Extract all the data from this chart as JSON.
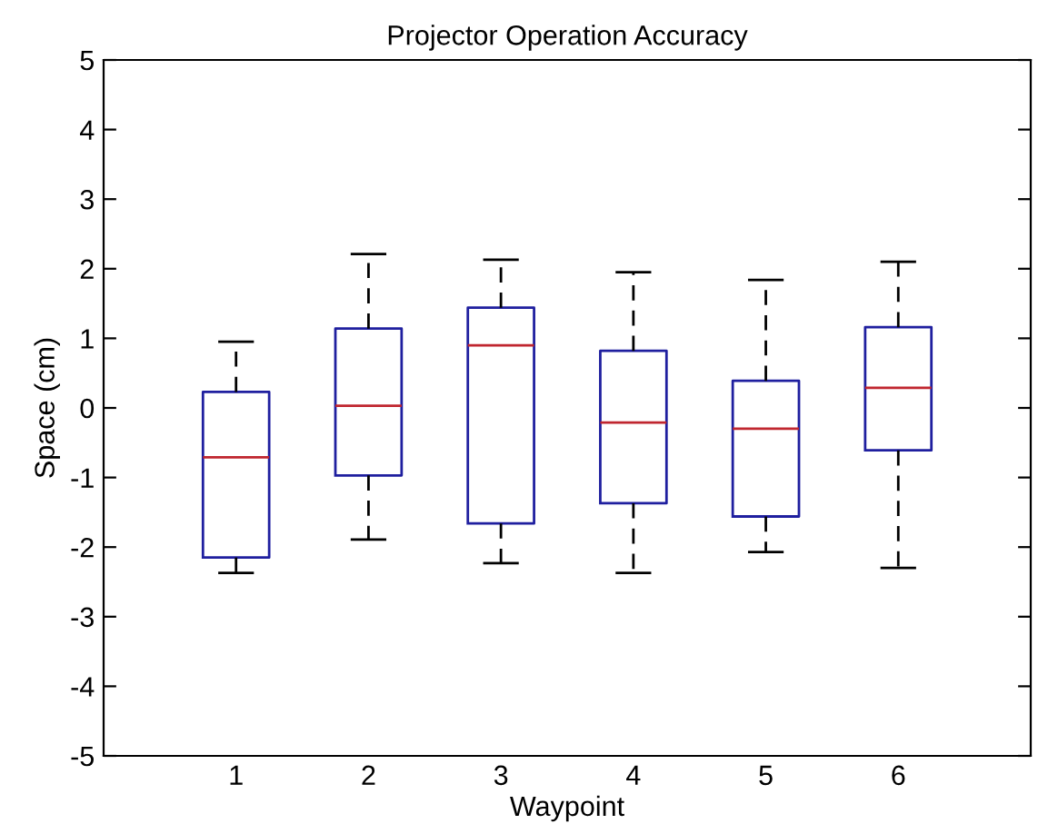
{
  "chart_data": {
    "type": "box",
    "title": "Projector Operation Accuracy",
    "xlabel": "Waypoint",
    "ylabel": "Space (cm)",
    "categories": [
      "1",
      "2",
      "3",
      "4",
      "5",
      "6"
    ],
    "boxes": [
      {
        "low": -2.37,
        "q1": -2.15,
        "median": -0.71,
        "q3": 0.23,
        "high": 0.95
      },
      {
        "low": -1.89,
        "q1": -0.97,
        "median": 0.03,
        "q3": 1.14,
        "high": 2.21
      },
      {
        "low": -2.23,
        "q1": -1.66,
        "median": 0.9,
        "q3": 1.44,
        "high": 2.13
      },
      {
        "low": -2.37,
        "q1": -1.37,
        "median": -0.21,
        "q3": 0.82,
        "high": 1.95
      },
      {
        "low": -2.07,
        "q1": -1.56,
        "median": -0.3,
        "q3": 0.39,
        "high": 1.84
      },
      {
        "low": -2.3,
        "q1": -0.61,
        "median": 0.29,
        "q3": 1.16,
        "high": 2.1
      }
    ],
    "color": "#1f1f9f",
    "ylim": [
      -5,
      5
    ],
    "yticks": [
      -5,
      -4,
      -3,
      -2,
      -1,
      0,
      1,
      2,
      3,
      4,
      5
    ],
    "grid": false,
    "legend": false
  }
}
